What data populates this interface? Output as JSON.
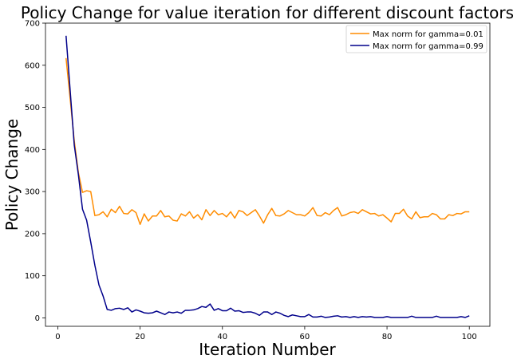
{
  "chart_data": {
    "type": "line",
    "title": "Policy Change for value iteration for different discount factors",
    "xlabel": "Iteration Number",
    "ylabel": "Policy Change",
    "xlim": [
      -3,
      105
    ],
    "ylim": [
      -20,
      700
    ],
    "xticks": [
      0,
      20,
      40,
      60,
      80,
      100
    ],
    "yticks": [
      0,
      100,
      200,
      300,
      400,
      500,
      600,
      700
    ],
    "grid": false,
    "legend_position": "top-right",
    "x": [
      2,
      3,
      4,
      5,
      6,
      7,
      8,
      9,
      10,
      11,
      12,
      13,
      14,
      15,
      16,
      17,
      18,
      19,
      20,
      21,
      22,
      23,
      24,
      25,
      26,
      27,
      28,
      29,
      30,
      31,
      32,
      33,
      34,
      35,
      36,
      37,
      38,
      39,
      40,
      41,
      42,
      43,
      44,
      45,
      46,
      47,
      48,
      49,
      50,
      51,
      52,
      53,
      54,
      55,
      56,
      57,
      58,
      59,
      60,
      61,
      62,
      63,
      64,
      65,
      66,
      67,
      68,
      69,
      70,
      71,
      72,
      73,
      74,
      75,
      76,
      77,
      78,
      79,
      80,
      81,
      82,
      83,
      84,
      85,
      86,
      87,
      88,
      89,
      90,
      91,
      92,
      93,
      94,
      95,
      96,
      97,
      98,
      99,
      100
    ],
    "series": [
      {
        "name": "Max norm for gamma=0.01",
        "color": "#ff8c00",
        "values": [
          617,
          520,
          420,
          345,
          298,
          302,
          300,
          243,
          245,
          252,
          240,
          258,
          250,
          265,
          248,
          247,
          257,
          250,
          222,
          247,
          230,
          242,
          242,
          255,
          240,
          242,
          232,
          230,
          247,
          242,
          252,
          237,
          245,
          233,
          257,
          243,
          255,
          245,
          248,
          240,
          252,
          237,
          255,
          252,
          243,
          250,
          257,
          242,
          225,
          245,
          260,
          243,
          242,
          247,
          255,
          250,
          245,
          245,
          242,
          250,
          262,
          243,
          242,
          250,
          245,
          255,
          262,
          242,
          245,
          250,
          252,
          248,
          257,
          252,
          247,
          248,
          242,
          245,
          237,
          228,
          248,
          248,
          258,
          242,
          235,
          252,
          238,
          240,
          240,
          248,
          245,
          235,
          235,
          245,
          243,
          248,
          247,
          252,
          252
        ]
      },
      {
        "name": "Max norm for gamma=0.99",
        "color": "#00008b",
        "values": [
          670,
          540,
          410,
          340,
          258,
          232,
          180,
          125,
          78,
          52,
          20,
          18,
          22,
          23,
          20,
          24,
          14,
          19,
          16,
          12,
          11,
          12,
          16,
          12,
          8,
          14,
          12,
          14,
          11,
          18,
          18,
          19,
          22,
          27,
          25,
          33,
          18,
          22,
          17,
          17,
          23,
          16,
          17,
          13,
          14,
          14,
          11,
          6,
          14,
          14,
          8,
          14,
          11,
          6,
          3,
          7,
          5,
          3,
          3,
          8,
          2,
          2,
          4,
          1,
          2,
          4,
          5,
          2,
          3,
          1,
          3,
          1,
          3,
          2,
          3,
          1,
          1,
          1,
          3,
          1,
          1,
          1,
          1,
          1,
          4,
          1,
          1,
          1,
          1,
          1,
          4,
          1,
          1,
          1,
          1,
          1,
          3,
          1,
          5
        ]
      }
    ]
  }
}
